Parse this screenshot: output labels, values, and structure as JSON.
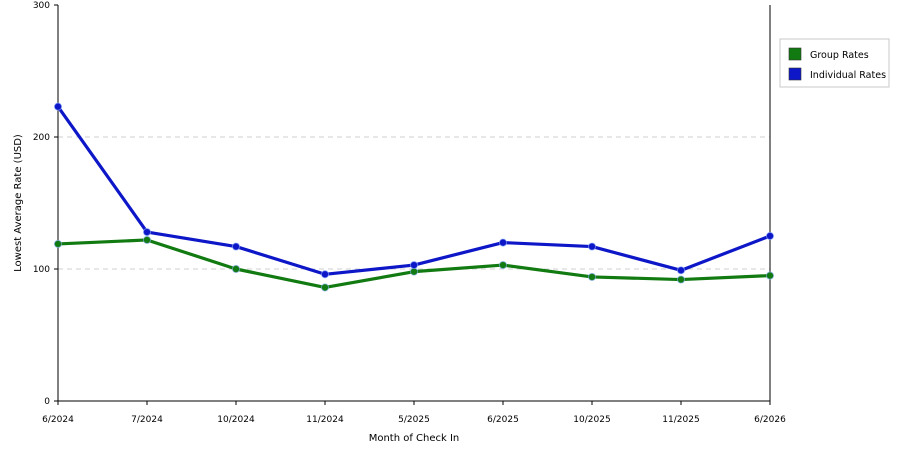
{
  "chart_data": {
    "type": "line",
    "title": "",
    "xlabel": "Month of Check In",
    "ylabel": "Lowest Average Rate (USD)",
    "categories": [
      "6/2024",
      "7/2024",
      "10/2024",
      "11/2024",
      "5/2025",
      "6/2025",
      "10/2025",
      "11/2025",
      "6/2026"
    ],
    "ylim": [
      0,
      300
    ],
    "yticks": [
      0,
      100,
      200,
      300
    ],
    "grid": true,
    "legend_position": "right",
    "series": [
      {
        "name": "Group Rates",
        "color": "#117a11",
        "values": [
          119,
          122,
          100,
          86,
          98,
          103,
          94,
          92,
          95
        ]
      },
      {
        "name": "Individual Rates",
        "color": "#0d17c8",
        "values": [
          223,
          128,
          117,
          96,
          103,
          120,
          117,
          99,
          125
        ]
      }
    ]
  }
}
